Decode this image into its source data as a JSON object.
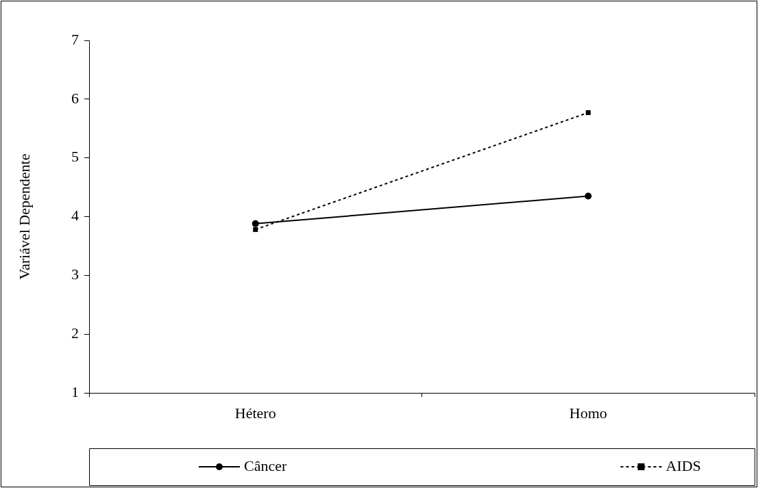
{
  "chart_data": {
    "type": "line",
    "ylabel": "Variável Dependente",
    "categories": [
      "Hétero",
      "Homo"
    ],
    "series": [
      {
        "name": "Câncer",
        "color": "#000000",
        "values": [
          3.88,
          4.35
        ],
        "marker": "circle",
        "line_style": "solid"
      },
      {
        "name": "AIDS",
        "color": "#000000",
        "values": [
          3.78,
          5.77
        ],
        "marker": "square",
        "line_style": "dashed"
      }
    ],
    "ylim": [
      1,
      7
    ],
    "yticks": [
      1,
      2,
      3,
      4,
      5,
      6,
      7
    ],
    "grid": false,
    "legend": "bottom"
  }
}
